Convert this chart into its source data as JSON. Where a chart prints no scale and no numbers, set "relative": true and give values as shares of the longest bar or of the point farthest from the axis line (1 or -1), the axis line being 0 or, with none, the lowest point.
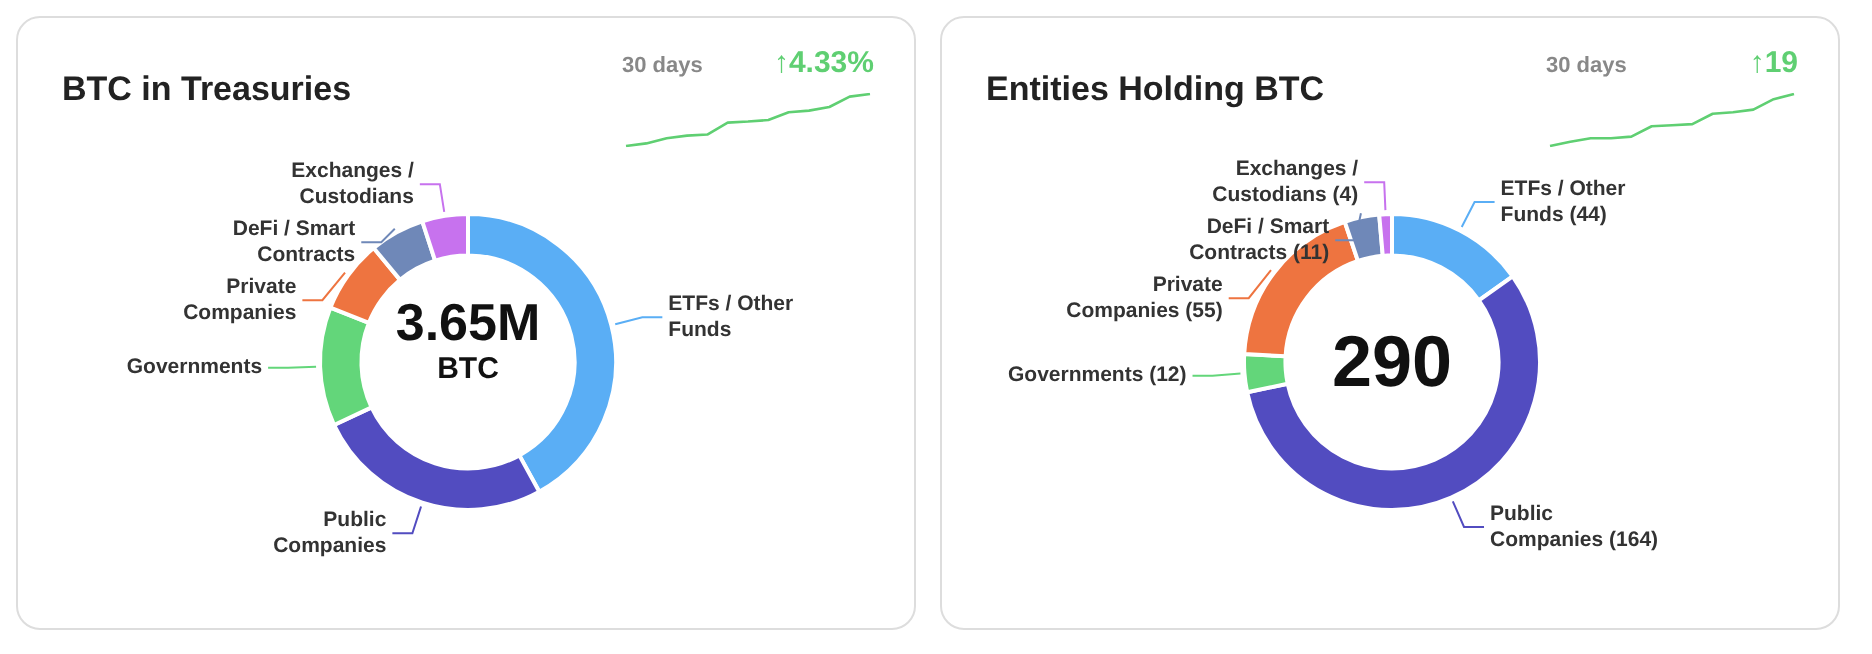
{
  "chart_data": [
    {
      "type": "donut",
      "title": "BTC in Treasuries",
      "categories": [
        "ETFs / Other Funds",
        "Public Companies",
        "Governments",
        "Private Companies",
        "DeFi / Smart Contracts",
        "Exchanges / Custodians"
      ],
      "values": [
        42,
        26,
        13,
        8,
        6,
        5
      ],
      "colors": [
        "#5aaef5",
        "#524cc0",
        "#63d67a",
        "#ee7440",
        "#6f88b8",
        "#c772ee"
      ],
      "annotations": [
        "3.65M",
        "BTC"
      ]
    },
    {
      "type": "line",
      "subtitle": "30 days",
      "relative": true,
      "categories": [
        null,
        null,
        null,
        null,
        null,
        null,
        null,
        null,
        null,
        null,
        null,
        null,
        null
      ],
      "series": [
        {
          "color": "#5fcf72",
          "values": [
            0,
            0.05,
            0.15,
            0.2,
            0.22,
            0.45,
            0.47,
            0.5,
            0.65,
            0.68,
            0.75,
            0.95,
            1
          ]
        }
      ],
      "annotations": [
        "↑4.33%"
      ]
    },
    {
      "type": "donut",
      "title": "Entities Holding BTC",
      "categories": [
        "ETFs / Other Funds (44)",
        "Public Companies (164)",
        "Governments (12)",
        "Private Companies (55)",
        "DeFi / Smart Contracts (11)",
        "Exchanges / Custodians (4)"
      ],
      "values": [
        44,
        164,
        12,
        55,
        11,
        4
      ],
      "colors": [
        "#5aaef5",
        "#524cc0",
        "#63d67a",
        "#ee7440",
        "#6f88b8",
        "#c772ee"
      ],
      "annotations": [
        "290"
      ]
    },
    {
      "type": "line",
      "subtitle": "30 days",
      "relative": true,
      "categories": [
        null,
        null,
        null,
        null,
        null,
        null,
        null,
        null,
        null,
        null,
        null,
        null,
        null
      ],
      "series": [
        {
          "color": "#5fcf72",
          "values": [
            0,
            0.08,
            0.15,
            0.15,
            0.18,
            0.38,
            0.4,
            0.42,
            0.62,
            0.65,
            0.7,
            0.9,
            1
          ]
        }
      ],
      "annotations": [
        "↑19"
      ]
    }
  ]
}
